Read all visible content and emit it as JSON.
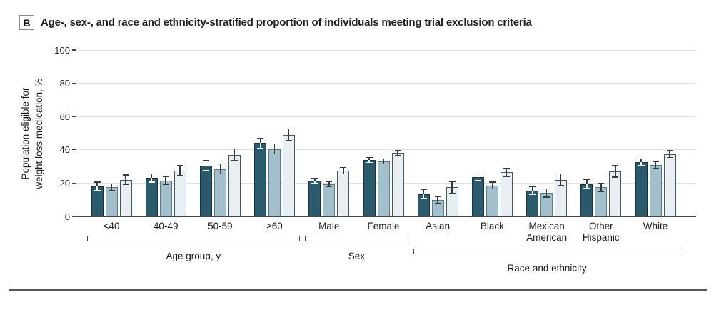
{
  "panel": {
    "letter": "B",
    "title": "Age-, sex-, and race and ethnicity-stratified proportion of individuals meeting trial exclusion criteria"
  },
  "chart_data": {
    "type": "bar",
    "title": "Age-, sex-, and race and ethnicity-stratified proportion of individuals meeting trial exclusion criteria",
    "ylabel_lines": [
      "Population eligible for",
      "weight loss medication, %"
    ],
    "ylabel": "Population eligible for weight loss medication, %",
    "xlabel": "",
    "ylim": [
      0,
      100
    ],
    "yticks": [
      0,
      20,
      40,
      60,
      80,
      100
    ],
    "grid": true,
    "legend_position": "none",
    "error_bars": true,
    "series": [
      {
        "name": "series-dark",
        "fill": "#2B5A6C",
        "border": "#16333F"
      },
      {
        "name": "series-medium",
        "fill": "#A3BFCB",
        "border": "#567D8D"
      },
      {
        "name": "series-light",
        "fill": "#E9EEF2",
        "border": "#3D5A68"
      }
    ],
    "groups": [
      {
        "label": "<40",
        "label_lines": [
          "<40"
        ],
        "values": [
          18,
          17.5,
          22
        ],
        "errors": [
          2.5,
          2,
          3
        ]
      },
      {
        "label": "40-49",
        "label_lines": [
          "40-49"
        ],
        "values": [
          23,
          21.5,
          27.5
        ],
        "errors": [
          2.5,
          2.5,
          3
        ]
      },
      {
        "label": "50-59",
        "label_lines": [
          "50-59"
        ],
        "values": [
          30.5,
          28.5,
          37
        ],
        "errors": [
          3,
          3,
          3.5
        ]
      },
      {
        "label": "≥60",
        "label_lines": [
          "≥60"
        ],
        "values": [
          44,
          40.5,
          49
        ],
        "errors": [
          3,
          3,
          3.5
        ]
      },
      {
        "label": "Male",
        "label_lines": [
          "Male"
        ],
        "values": [
          21.5,
          19.5,
          27.5
        ],
        "errors": [
          1.5,
          1.5,
          2
        ]
      },
      {
        "label": "Female",
        "label_lines": [
          "Female"
        ],
        "values": [
          34,
          33,
          38
        ],
        "errors": [
          1.5,
          1.5,
          1.5
        ]
      },
      {
        "label": "Asian",
        "label_lines": [
          "Asian"
        ],
        "values": [
          13.5,
          10,
          17.5
        ],
        "errors": [
          2.5,
          2,
          3.5
        ]
      },
      {
        "label": "Black",
        "label_lines": [
          "Black"
        ],
        "values": [
          23.5,
          18.5,
          26.5
        ],
        "errors": [
          2,
          2,
          2.5
        ]
      },
      {
        "label": "Mexican American",
        "label_lines": [
          "Mexican",
          "American"
        ],
        "values": [
          15.5,
          14,
          22
        ],
        "errors": [
          2.5,
          2.5,
          3.5
        ]
      },
      {
        "label": "Other Hispanic",
        "label_lines": [
          "Other",
          "Hispanic"
        ],
        "values": [
          19.5,
          17.5,
          27
        ],
        "errors": [
          2.5,
          2.5,
          3.5
        ]
      },
      {
        "label": "White",
        "label_lines": [
          "White"
        ],
        "values": [
          32.5,
          31,
          37.5
        ],
        "errors": [
          2,
          2,
          2
        ]
      }
    ],
    "category_brackets": [
      {
        "label": "Age group, y",
        "from": 0,
        "to": 3,
        "level": 1
      },
      {
        "label": "Sex",
        "from": 4,
        "to": 5,
        "level": 1
      },
      {
        "label": "Race and ethnicity",
        "from": 6,
        "to": 10,
        "level": 2
      }
    ],
    "colors": {
      "gridline": "#E0E0E0",
      "axis": "#454545",
      "error_bar": "#3A3A3A",
      "error_bar_on_dark": "#FFFFFF",
      "bottom_rule": "#575757",
      "text": "#1c1c1c"
    }
  }
}
